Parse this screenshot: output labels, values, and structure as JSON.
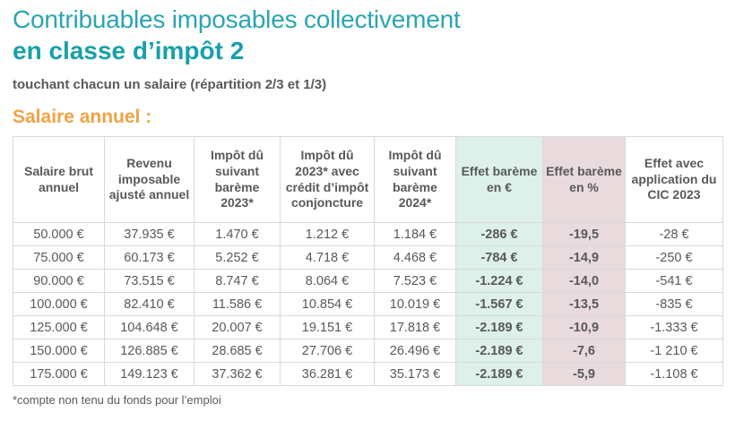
{
  "header": {
    "title_line1": "Contribuables imposables collectivement",
    "title_line2": "en classe d’impôt 2",
    "subtitle": "touchant chacun un salaire (répartition 2/3 et 1/3)",
    "section_label": "Salaire annuel :"
  },
  "colors": {
    "title_teal": "#2aa5b2",
    "title_teal_bold": "#18a0a9",
    "orange": "#f0a344",
    "text_gray": "#595959",
    "grid_border": "#d9d9d9",
    "effect_eur_bg": "#ddf0ea",
    "effect_eur_text": "#3cb9a6",
    "effect_eur_border": "#9ed2c6",
    "effect_pct_bg": "#e9dade",
    "effect_pct_text": "#b18290",
    "effect_pct_border": "#c2a0aa"
  },
  "table": {
    "columns": [
      "Salaire brut annuel",
      "Revenu imposable ajusté annuel",
      "Impôt dû suivant barème 2023*",
      "Impôt dû 2023* avec crédit d’impôt conjoncture",
      "Impôt dû suivant barème 2024*",
      "Effet barème en €",
      "Effet barème en %",
      "Effet avec application du CIC 2023"
    ],
    "rows": [
      [
        "50.000 €",
        "37.935 €",
        "1.470 €",
        "1.212 €",
        "1.184 €",
        "-286 €",
        "-19,5",
        "-28 €"
      ],
      [
        "75.000 €",
        "60.173 €",
        "5.252 €",
        "4.718 €",
        "4.468 €",
        "-784 €",
        "-14,9",
        "-250 €"
      ],
      [
        "90.000 €",
        "73.515 €",
        "8.747 €",
        "8.064 €",
        "7.523 €",
        "-1.224 €",
        "-14,0",
        "-541 €"
      ],
      [
        "100.000 €",
        "82.410 €",
        "11.586 €",
        "10.854 €",
        "10.019 €",
        "-1.567 €",
        "-13,5",
        "-835 €"
      ],
      [
        "125.000 €",
        "104.648 €",
        "20.007 €",
        "19.151 €",
        "17.818 €",
        "-2.189 €",
        "-10,9",
        "-1.333 €"
      ],
      [
        "150.000 €",
        "126.885 €",
        "28.685 €",
        "27.706 €",
        "26.496 €",
        "-2.189 €",
        "-7,6",
        "-1 210 €"
      ],
      [
        "175.000 €",
        "149.123 €",
        "37.362 €",
        "36.281 €",
        "35.173 €",
        "-2.189 €",
        "-5,9",
        "-1.108 €"
      ]
    ],
    "footnote": "*compte non tenu du fonds pour l’emploi"
  }
}
